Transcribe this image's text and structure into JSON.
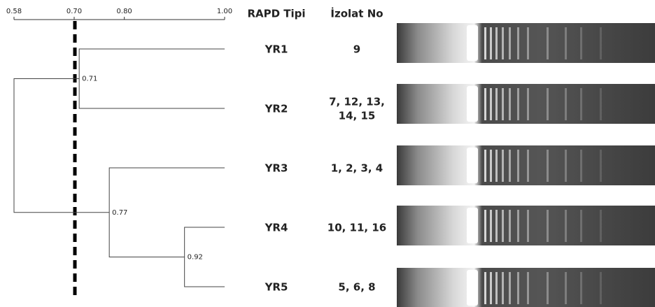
{
  "header": {
    "axis_ticks": [
      "0.58",
      "0.70",
      "0.80",
      "1.00"
    ],
    "type_column": "RAPD Tipi",
    "isolate_column": "İzolat No"
  },
  "rows": [
    {
      "type": "YR1",
      "isolates": [
        "9"
      ]
    },
    {
      "type": "YR2",
      "isolates": [
        "7, 12, 13,",
        "14, 15"
      ]
    },
    {
      "type": "YR3",
      "isolates": [
        "1, 2, 3, 4"
      ]
    },
    {
      "type": "YR4",
      "isolates": [
        "10, 11, 16"
      ]
    },
    {
      "type": "YR5",
      "isolates": [
        "5, 6, 8"
      ]
    }
  ],
  "nodes": [
    {
      "label": "0.71"
    },
    {
      "label": "0.77"
    },
    {
      "label": "0.92"
    }
  ]
}
